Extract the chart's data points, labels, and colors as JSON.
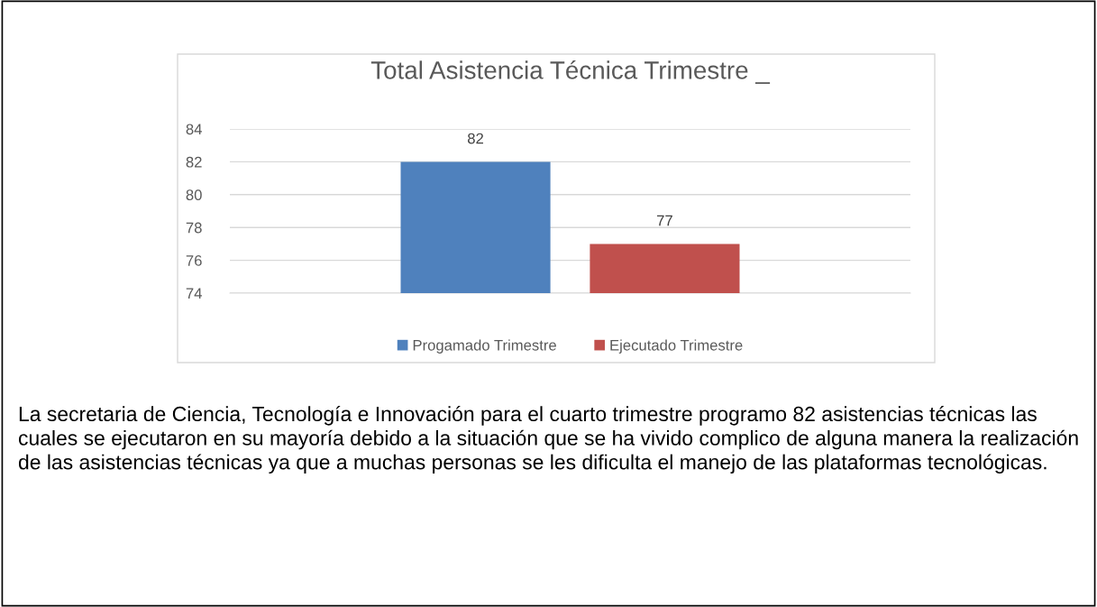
{
  "chart_data": {
    "type": "bar",
    "title": "Total Asistencia Técnica Trimestre _",
    "categories": [
      null
    ],
    "series": [
      {
        "name": "Progamado Trimestre",
        "color": "#4f81bd",
        "values": [
          82
        ]
      },
      {
        "name": "Ejecutado Trimestre",
        "color": "#c0504d",
        "values": [
          77
        ]
      }
    ],
    "ylim": [
      74,
      84
    ],
    "yticks": [
      74,
      76,
      78,
      80,
      82,
      84
    ],
    "grid": "y",
    "legend": "bottom",
    "data_labels": true,
    "annotations": [
      "La secretaria de Ciencia, Tecnología e Innovación para el cuarto trimestre programo 82 asistencias técnicas las cuales se ejecutaron en su mayoría debido a la situación que se ha vivido complico de alguna manera la realización de las asistencias técnicas ya que a muchas personas se les dificulta el manejo de las plataformas tecnológicas."
    ]
  }
}
